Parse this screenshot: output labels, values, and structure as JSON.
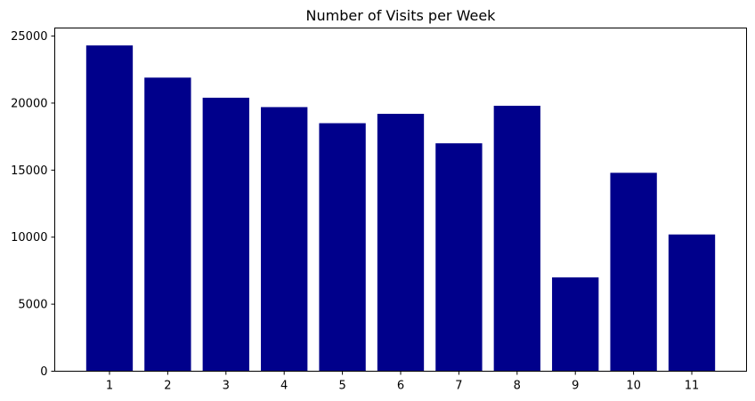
{
  "colors": {
    "bar": "#00008b",
    "axis": "#000000",
    "background": "#ffffff"
  },
  "chart_data": {
    "type": "bar",
    "title": "Number of Visits per Week",
    "xlabel": "",
    "ylabel": "",
    "categories": [
      "1",
      "2",
      "3",
      "4",
      "5",
      "6",
      "7",
      "8",
      "9",
      "10",
      "11"
    ],
    "values": [
      24300,
      21900,
      20400,
      19700,
      18500,
      19200,
      17000,
      19800,
      7000,
      14800,
      10200
    ],
    "ylim": [
      0,
      25600
    ],
    "yticks": [
      0,
      5000,
      10000,
      15000,
      20000,
      25000
    ],
    "ytick_labels": [
      "0",
      "5000",
      "10000",
      "15000",
      "20000",
      "25000"
    ],
    "grid": false,
    "legend": "none"
  }
}
